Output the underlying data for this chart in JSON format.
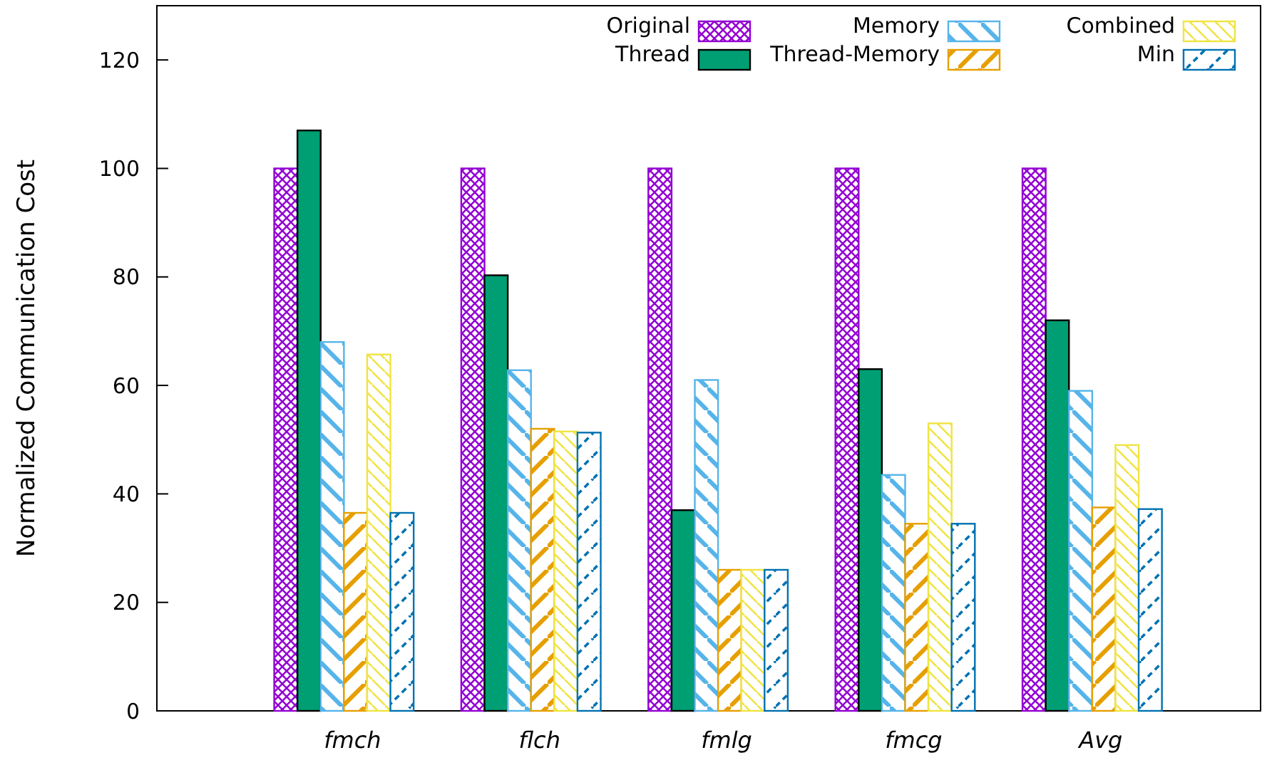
{
  "chart_data": {
    "type": "bar",
    "ylabel": "Normalized Communication Cost",
    "categories": [
      "fmch",
      "flch",
      "fmlg",
      "fmcg",
      "Avg"
    ],
    "series": [
      {
        "name": "Original",
        "color": "#9400d3",
        "values": [
          100,
          100,
          100,
          100,
          100
        ]
      },
      {
        "name": "Thread",
        "color": "#009e73",
        "values": [
          107,
          80.3,
          37,
          63,
          72
        ]
      },
      {
        "name": "Memory",
        "color": "#56b4e9",
        "values": [
          68,
          62.8,
          61,
          43.5,
          59
        ]
      },
      {
        "name": "Thread-Memory",
        "color": "#e69f00",
        "values": [
          36.5,
          52,
          26,
          34.5,
          37.5
        ]
      },
      {
        "name": "Combined",
        "color": "#f0e442",
        "values": [
          65.7,
          51.5,
          26,
          53,
          49
        ]
      },
      {
        "name": "Min",
        "color": "#0072b2",
        "values": [
          36.5,
          51.3,
          26,
          34.5,
          37.2
        ]
      }
    ],
    "ylim": [
      0,
      130
    ],
    "yticks": [
      0,
      20,
      40,
      60,
      80,
      100,
      120
    ],
    "grid": false,
    "legend": "top right"
  }
}
